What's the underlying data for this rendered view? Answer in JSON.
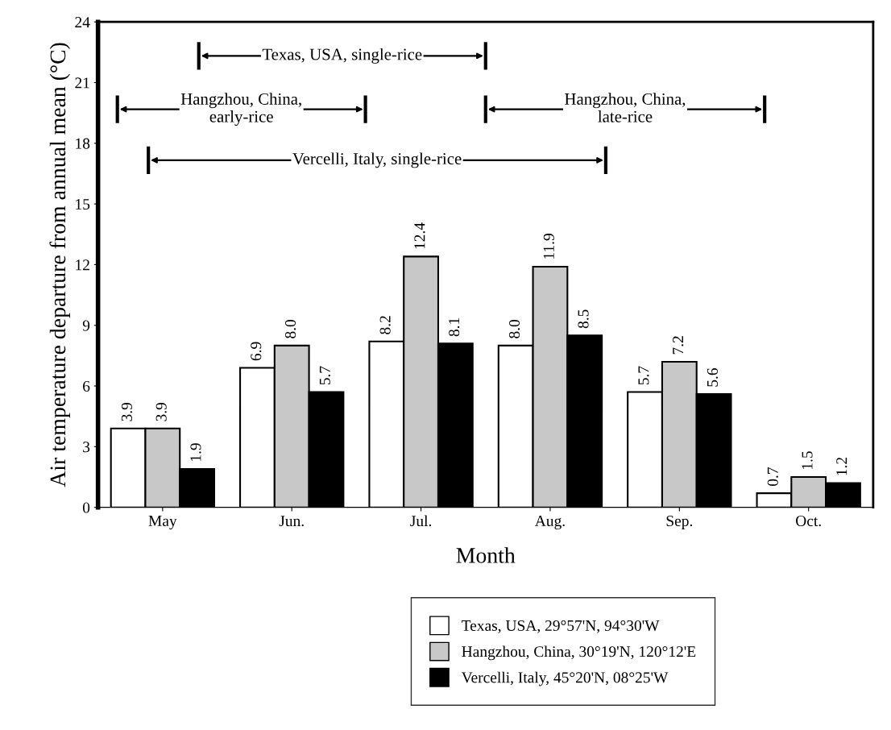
{
  "chart_data": {
    "type": "bar",
    "xlabel": "Month",
    "ylabel": "Air temperature departure from annual mean (°C)",
    "categories": [
      "May",
      "Jun.",
      "Jul.",
      "Aug.",
      "Sep.",
      "Oct."
    ],
    "series": [
      {
        "name": "Texas, USA, 29°57'N, 94°30'W",
        "color": "#ffffff",
        "values": [
          3.9,
          6.9,
          8.2,
          8.0,
          5.7,
          0.7
        ],
        "value_labels": [
          "3.9",
          "6.9",
          "8.2",
          "8.0",
          "5.7",
          "0.7"
        ]
      },
      {
        "name": "Hangzhou, China, 30°19'N, 120°12'E",
        "color": "#c8c8c8",
        "values": [
          3.9,
          8.0,
          12.4,
          11.9,
          7.2,
          1.5
        ],
        "value_labels": [
          "3.9",
          "8.0",
          "12.4",
          "11.9",
          "7.2",
          "1.5"
        ]
      },
      {
        "name": "Vercelli, Italy, 45°20'N, 08°25'W",
        "color": "#000000",
        "values": [
          1.9,
          5.7,
          8.1,
          8.5,
          5.6,
          1.2
        ],
        "value_labels": [
          "1.9",
          "5.7",
          "8.1",
          "8.5",
          "5.6",
          "1.2"
        ]
      }
    ],
    "ylim": [
      0,
      24
    ],
    "yticks": [
      0,
      3,
      6,
      9,
      12,
      15,
      18,
      21,
      24
    ],
    "legend": "bottom",
    "grid": false,
    "annotations": [
      "Texas, USA, single-rice",
      "Hangzhou, China,\nearly-rice",
      "Hangzhou, China,\nlate-rice",
      "Vercelli, Italy, single-rice"
    ]
  }
}
